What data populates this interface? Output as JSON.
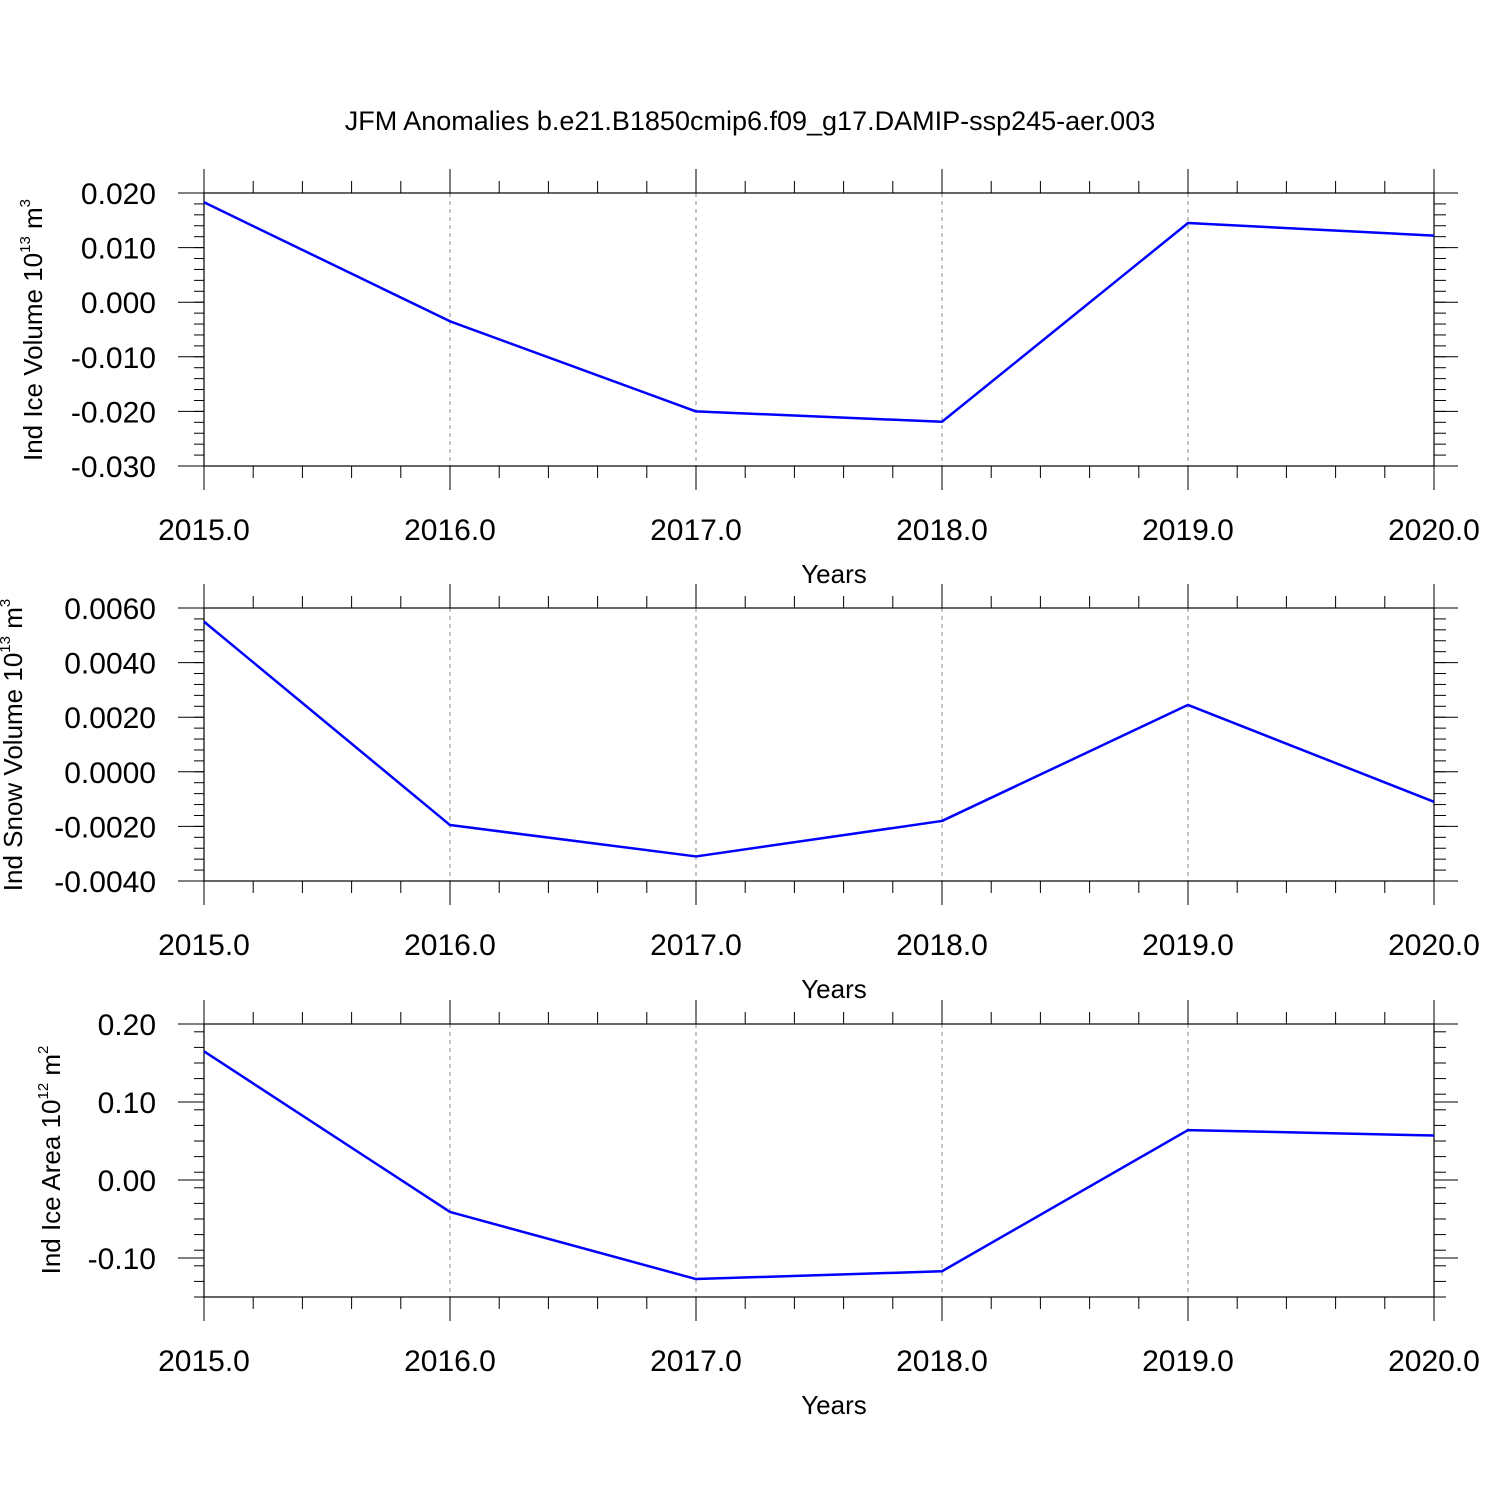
{
  "title": "JFM Anomalies b.e21.B1850cmip6.f09_g17.DAMIP-ssp245-aer.003",
  "colors": {
    "line": "#0000ff",
    "grid": "#888888",
    "frame": "#000000"
  },
  "chart_data": [
    {
      "type": "line",
      "xlabel": "Years",
      "ylabel": "Ind Ice Volume 10",
      "ylabel_exp": "13",
      "ylabel_unit": " m",
      "ylabel_unit_exp": "3",
      "x": [
        2015,
        2016,
        2017,
        2018,
        2019,
        2020
      ],
      "x_tick_labels": [
        "2015.0",
        "2016.0",
        "2017.0",
        "2018.0",
        "2019.0",
        "2020.0"
      ],
      "y": [
        0.0183,
        -0.0035,
        -0.02,
        -0.0219,
        0.0145,
        0.0122
      ],
      "y_ticks": [
        0.02,
        0.01,
        0.0,
        -0.01,
        -0.02,
        -0.03
      ],
      "y_tick_labels": [
        "0.020",
        "0.010",
        "0.000",
        "-0.010",
        "-0.020",
        "-0.030"
      ],
      "xlim": [
        2015,
        2020
      ],
      "ylim": [
        -0.03,
        0.02
      ],
      "grid": "vertical-dashed"
    },
    {
      "type": "line",
      "xlabel": "Years",
      "ylabel": "Ind Snow Volume 10",
      "ylabel_exp": "13",
      "ylabel_unit": " m",
      "ylabel_unit_exp": "3",
      "x": [
        2015,
        2016,
        2017,
        2018,
        2019,
        2020
      ],
      "x_tick_labels": [
        "2015.0",
        "2016.0",
        "2017.0",
        "2018.0",
        "2019.0",
        "2020.0"
      ],
      "y": [
        0.0055,
        -0.00195,
        -0.0031,
        -0.0018,
        0.00245,
        -0.0011
      ],
      "y_ticks": [
        0.006,
        0.004,
        0.002,
        0.0,
        -0.002,
        -0.004
      ],
      "y_tick_labels": [
        "0.0060",
        "0.0040",
        "0.0020",
        "0.0000",
        "-0.0020",
        "-0.0040"
      ],
      "xlim": [
        2015,
        2020
      ],
      "ylim": [
        -0.004,
        0.006
      ],
      "grid": "vertical-dashed"
    },
    {
      "type": "line",
      "xlabel": "Years",
      "ylabel": "Ind Ice Area 10",
      "ylabel_exp": "12",
      "ylabel_unit": " m",
      "ylabel_unit_exp": "2",
      "x": [
        2015,
        2016,
        2017,
        2018,
        2019,
        2020
      ],
      "x_tick_labels": [
        "2015.0",
        "2016.0",
        "2017.0",
        "2018.0",
        "2019.0",
        "2020.0"
      ],
      "y": [
        0.165,
        -0.041,
        -0.127,
        -0.117,
        0.064,
        0.057
      ],
      "y_ticks": [
        0.2,
        0.1,
        0.0,
        -0.1
      ],
      "y_tick_labels": [
        "0.20",
        "0.10",
        "0.00",
        "-0.10"
      ],
      "xlim": [
        2015,
        2020
      ],
      "ylim": [
        -0.15,
        0.2
      ],
      "grid": "vertical-dashed"
    }
  ]
}
